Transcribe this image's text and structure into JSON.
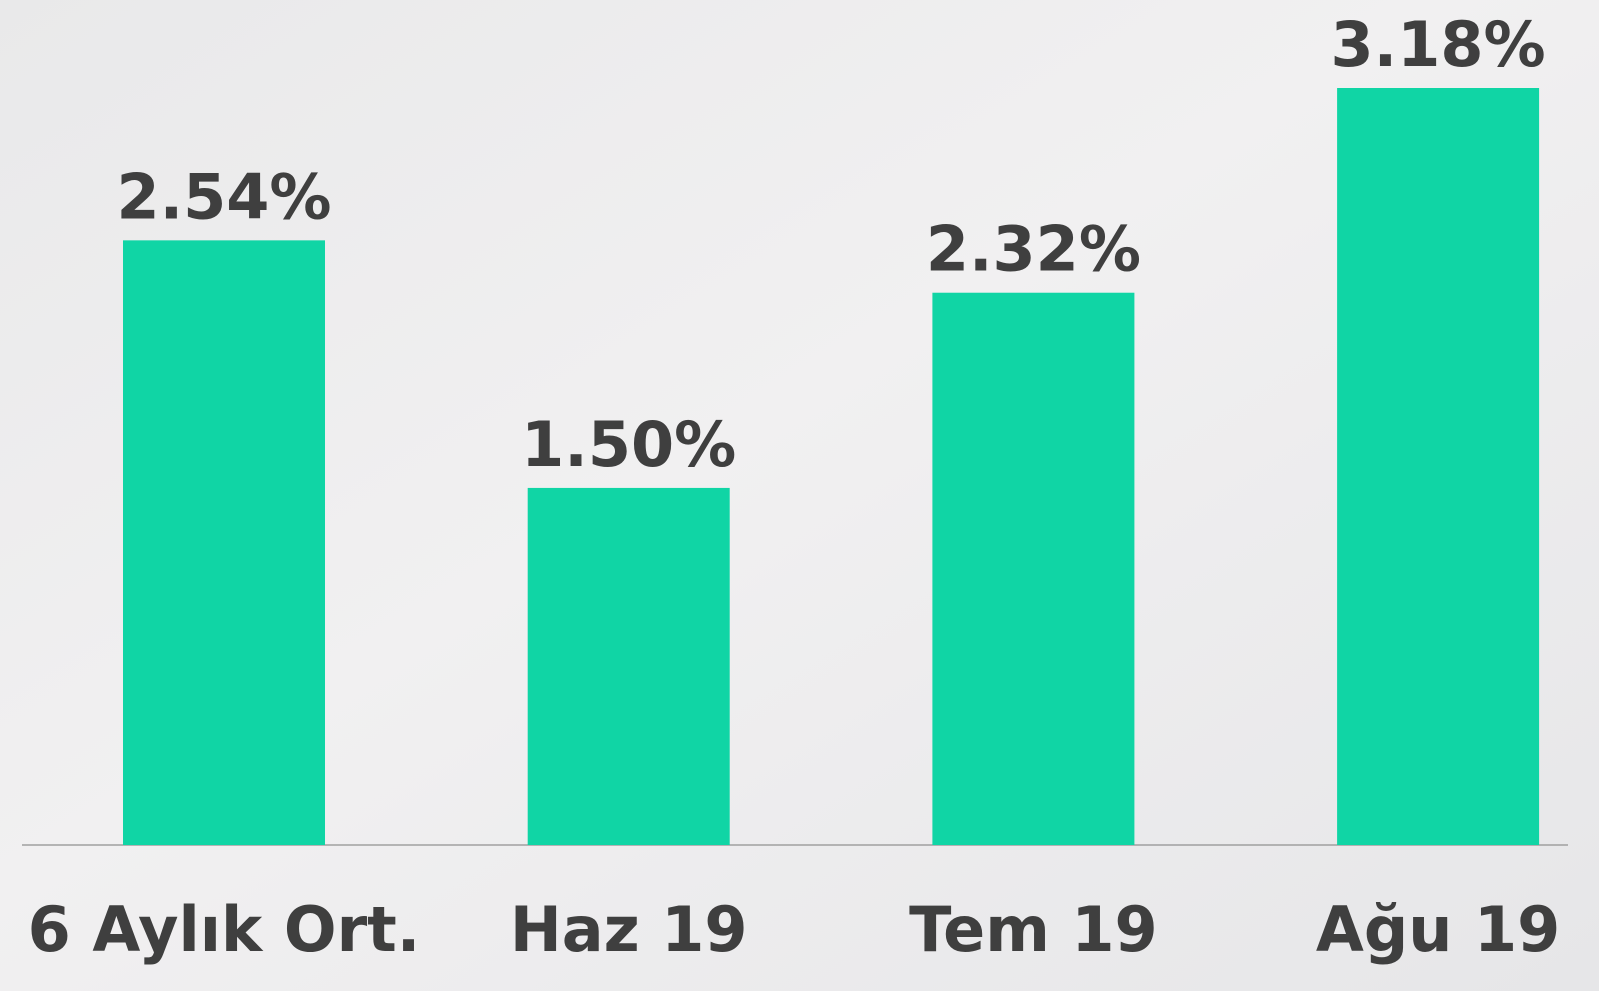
{
  "chart_data": {
    "type": "bar",
    "categories": [
      "6 Aylık Ort.",
      "Haz 19",
      "Tem 19",
      "Ağu 19"
    ],
    "values": [
      2.54,
      1.5,
      2.32,
      3.18
    ],
    "value_labels": [
      "2.54%",
      "1.50%",
      "2.32%",
      "3.18%"
    ],
    "color": "#10d5a5"
  }
}
